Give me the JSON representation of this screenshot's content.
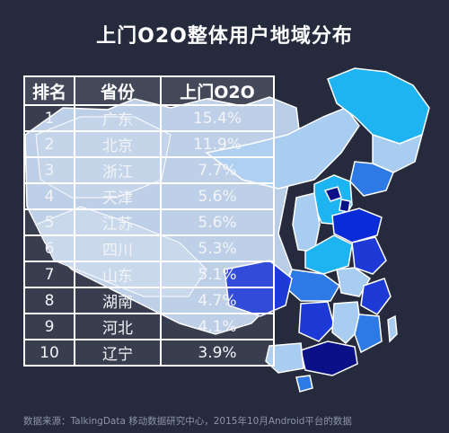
{
  "title": "上门O2O整体用户地域分布",
  "chart_data": {
    "type": "table",
    "columns": [
      "排名",
      "省份",
      "上门O2O"
    ],
    "rows": [
      [
        "1",
        "广东",
        "15.4%"
      ],
      [
        "2",
        "北京",
        "11.9%"
      ],
      [
        "3",
        "浙江",
        "7.7%"
      ],
      [
        "4",
        "天津",
        "5.6%"
      ],
      [
        "5",
        "江苏",
        "5.6%"
      ],
      [
        "6",
        "四川",
        "5.3%"
      ],
      [
        "7",
        "山东",
        "5.1%"
      ],
      [
        "8",
        "湖南",
        "4.7%"
      ],
      [
        "9",
        "河北",
        "4.1%"
      ],
      [
        "10",
        "辽宁",
        "3.9%"
      ]
    ]
  },
  "map": {
    "type": "choropleth",
    "region": "China provinces",
    "colors": {
      "darkest": "#0a1188",
      "dark": "#1e3ad6",
      "medium": "#2d79e6",
      "bright": "#1eb4f2",
      "light": "#a9cdf0",
      "base_overlay": "#c3d3e8",
      "border": "#ffffff"
    }
  },
  "source": "数据来源：TalkingData 移动数据研究中心，2015年10月Android平台的数据"
}
